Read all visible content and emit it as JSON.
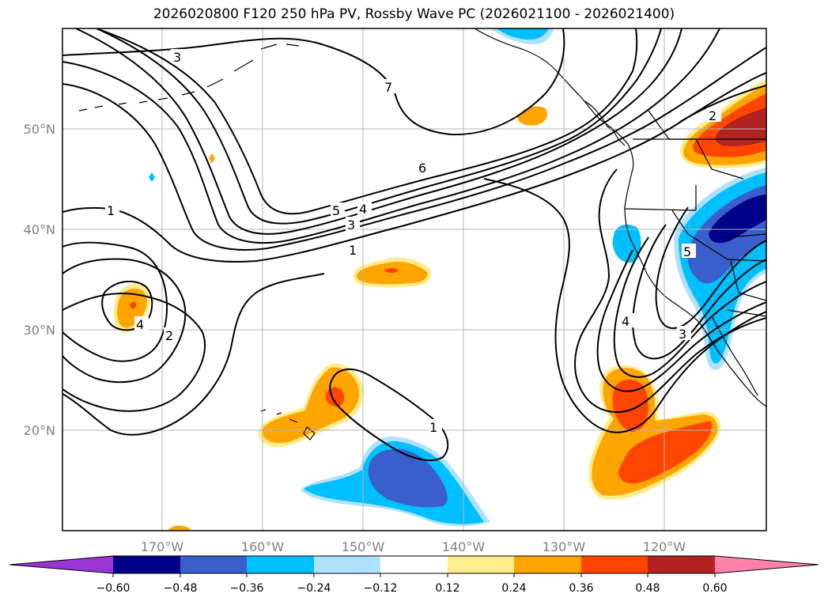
{
  "title": "2026020800 F120 250 hPa PV, Rossby Wave PC (2026021100 - 2026021400)",
  "map": {
    "lat_labels": [
      "50°N",
      "40°N",
      "30°N",
      "20°N"
    ],
    "lon_labels": [
      "170°W",
      "160°W",
      "150°W",
      "140°W",
      "130°W",
      "120°W"
    ],
    "contour_labels": [
      "3",
      "7",
      "6",
      "5",
      "4",
      "3",
      "1",
      "1",
      "4",
      "2",
      "2",
      "1",
      "4",
      "5",
      "3"
    ]
  },
  "colorbar": {
    "colors": [
      "#9b35d6",
      "#00008b",
      "#3a5fcd",
      "#00bfff",
      "#b0e2ff",
      "#ffffff",
      "#ffec8b",
      "#ffa500",
      "#ff4500",
      "#b22222",
      "#ff82ab"
    ],
    "tick_labels": [
      "−0.60",
      "−0.48",
      "−0.36",
      "−0.24",
      "−0.12",
      "0.12",
      "0.24",
      "0.36",
      "0.48",
      "0.60"
    ]
  }
}
